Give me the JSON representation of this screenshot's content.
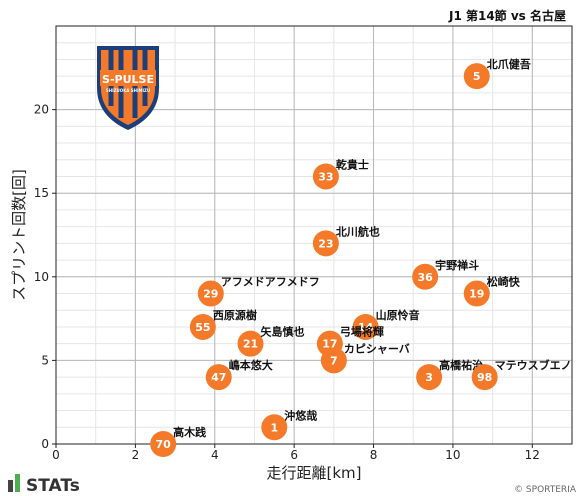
{
  "chart_data": {
    "type": "scatter",
    "title": "J1 第14節 vs 名古屋",
    "xlabel": "走行距離[km]",
    "ylabel": "スプリント回数[回]",
    "xlim": [
      0,
      13
    ],
    "ylim": [
      0,
      25
    ],
    "xticks": [
      0,
      2,
      4,
      6,
      8,
      10,
      12
    ],
    "yticks": [
      0,
      5,
      10,
      15,
      20
    ],
    "grid": true,
    "marker_color": "#F47A2A",
    "points": [
      {
        "number": "5",
        "name": "北爪健吾",
        "x": 10.6,
        "y": 22
      },
      {
        "number": "33",
        "name": "乾貴士",
        "x": 6.8,
        "y": 16
      },
      {
        "number": "23",
        "name": "北川航也",
        "x": 6.8,
        "y": 12
      },
      {
        "number": "36",
        "name": "宇野禅斗",
        "x": 9.3,
        "y": 10
      },
      {
        "number": "19",
        "name": "松崎快",
        "x": 10.6,
        "y": 9
      },
      {
        "number": "29",
        "name": "アフメドアフメドフ",
        "x": 3.9,
        "y": 9
      },
      {
        "number": "55",
        "name": "西原源樹",
        "x": 3.7,
        "y": 7
      },
      {
        "number": "14",
        "name": "山原怜音",
        "x": 7.8,
        "y": 7
      },
      {
        "number": "21",
        "name": "矢島慎也",
        "x": 4.9,
        "y": 6
      },
      {
        "number": "17",
        "name": "弓場将輝",
        "x": 6.9,
        "y": 6
      },
      {
        "number": "7",
        "name": "カピシャーバ",
        "x": 7.0,
        "y": 5
      },
      {
        "number": "3",
        "name": "高橋祐治",
        "x": 9.4,
        "y": 4
      },
      {
        "number": "98",
        "name": "マテウスブエノ",
        "x": 10.8,
        "y": 4
      },
      {
        "number": "47",
        "name": "嶋本悠大",
        "x": 4.1,
        "y": 4
      },
      {
        "number": "1",
        "name": "沖悠哉",
        "x": 5.5,
        "y": 1
      },
      {
        "number": "70",
        "name": "高木践",
        "x": 2.7,
        "y": 0
      }
    ]
  },
  "logo": {
    "text": "S-PULSE",
    "subtext": "SHIZUOKA SHIMIZU"
  },
  "brand": {
    "text": "STATs",
    "copyright": "© SPORTERIA"
  }
}
